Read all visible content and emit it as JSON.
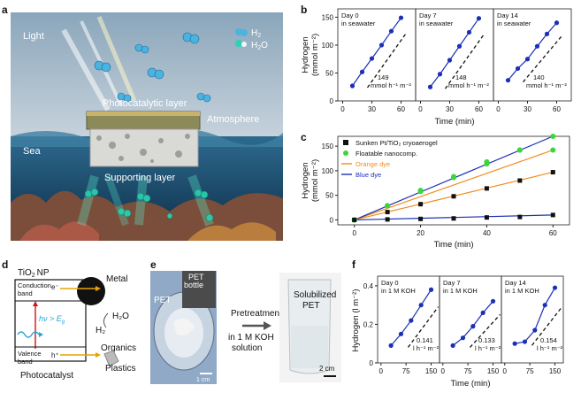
{
  "panel_labels": {
    "a": "a",
    "b": "b",
    "c": "c",
    "d": "d",
    "e": "e",
    "f": "f"
  },
  "panel_a": {
    "light": "Light",
    "legend_h2": "H",
    "legend_h2_sub": "2",
    "legend_h2o_pre": "H",
    "legend_h2o_sub": "2",
    "legend_h2o_post": "O",
    "photocatalytic_layer": "Photocatalytic layer",
    "atmosphere": "Atmosphere",
    "sea": "Sea",
    "supporting_layer": "Supporting layer",
    "colors": {
      "sky": "#6f8fa6",
      "sea": "#1d4f73",
      "bubble": "#3aa0d0",
      "water_mol": "#2bd3b0"
    }
  },
  "panel_d": {
    "tio2": "TiO",
    "tio2_sub": "2",
    "tio2_np": "NP",
    "metal": "Metal",
    "conduction_band_1": "Conduction",
    "conduction_band_2": "band",
    "electron": "e⁻",
    "hv": "hν > E",
    "hv_sub": "g",
    "valence_band_1": "Valence",
    "valence_band_2": "band",
    "hole": "h⁺",
    "h2o": "H₂O",
    "h2": "H₂",
    "organics": "Organics",
    "plastics": "Plastics",
    "photocatalyst": "Photocatalyst"
  },
  "panel_e": {
    "pet": "PET",
    "pet_bottle_1": "PET",
    "pet_bottle_2": "bottle",
    "scale_1": "1 cm",
    "pretreatment": "Pretreatment",
    "in_koh_1": "in 1 M KOH",
    "in_koh_2": "solution",
    "solubilized_1": "Solubilized",
    "solubilized_2": "PET",
    "scale_2": "2 cm"
  },
  "chart_data": [
    {
      "id": "b",
      "type": "line",
      "ylabel_1": "Hydrogen",
      "ylabel_2": "(mmol m⁻²)",
      "xlabel": "Time (min)",
      "xticks": [
        0,
        30,
        60
      ],
      "yticks": [
        0,
        50,
        100,
        150
      ],
      "xlim": [
        -5,
        75
      ],
      "ylim": [
        0,
        165
      ],
      "subplots": [
        {
          "title_1": "Day 0",
          "title_2": "in seawater",
          "x": [
            10,
            20,
            30,
            40,
            50,
            60
          ],
          "y": [
            27,
            52,
            76,
            100,
            125,
            149
          ],
          "rate": "149",
          "unit": "mmol h⁻¹ m⁻²"
        },
        {
          "title_1": "Day 7",
          "title_2": "in seawater",
          "x": [
            10,
            20,
            30,
            40,
            50,
            60
          ],
          "y": [
            25,
            48,
            73,
            98,
            123,
            148
          ],
          "rate": "148",
          "unit": "mmol h⁻¹ m⁻²"
        },
        {
          "title_1": "Day 14",
          "title_2": "in seawater",
          "x": [
            10,
            20,
            30,
            40,
            50,
            60
          ],
          "y": [
            37,
            58,
            75,
            98,
            120,
            140
          ],
          "rate": "140",
          "unit": "mmol h⁻¹ m⁻²"
        }
      ]
    },
    {
      "id": "c",
      "type": "line",
      "ylabel_1": "Hydrogen",
      "ylabel_2": "(mmol m⁻²)",
      "xlabel": "Time (min)",
      "xticks": [
        0,
        20,
        40,
        60
      ],
      "yticks": [
        0,
        50,
        100,
        150
      ],
      "xlim": [
        -5,
        65
      ],
      "ylim": [
        -10,
        170
      ],
      "legend": [
        "Sunken Pt/TiO₂ cryoaerogel",
        "Floatable nanocomp.",
        "Orange dye",
        "Blue dye"
      ],
      "series": [
        {
          "name": "Sunken Pt/TiO₂ cryoaerogel",
          "marker": "square",
          "color": "#111111",
          "x": [
            0,
            10,
            20,
            30,
            40,
            50,
            60
          ],
          "y": [
            0,
            16,
            32,
            48,
            64,
            80,
            97
          ]
        },
        {
          "name": "Floatable nanocomp.",
          "marker": "circle",
          "color": "#3bd63b",
          "x": [
            0,
            10,
            20,
            30,
            40,
            50,
            60
          ],
          "y": [
            0,
            29,
            58,
            86,
            114,
            142,
            170
          ]
        },
        {
          "name": "Floatable nanocomp.",
          "marker": "circle",
          "color": "#3bd63b",
          "x": [
            0,
            10,
            20,
            30,
            40,
            50,
            60
          ],
          "y": [
            0,
            29,
            60,
            88,
            118,
            142,
            142
          ]
        },
        {
          "name": "Sunken Pt/TiO₂ cryoaerogel",
          "marker": "square",
          "color": "#111111",
          "x": [
            0,
            10,
            20,
            30,
            40,
            50,
            60
          ],
          "y": [
            0,
            1,
            2,
            3,
            5,
            6,
            10
          ]
        }
      ],
      "lines": [
        {
          "name": "Orange dye",
          "color": "#f28c1e",
          "x": [
            0,
            60
          ],
          "y": [
            0,
            142
          ]
        },
        {
          "name": "Blue dye",
          "color": "#1b2fb8",
          "x": [
            0,
            60
          ],
          "y": [
            0,
            170
          ]
        },
        {
          "name": "Orange dye",
          "color": "#f28c1e",
          "x": [
            0,
            60
          ],
          "y": [
            0,
            97
          ]
        },
        {
          "name": "Blue dye",
          "color": "#1b2fb8",
          "x": [
            0,
            60
          ],
          "y": [
            0,
            10
          ]
        }
      ]
    },
    {
      "id": "f",
      "type": "line",
      "ylabel": "Hydrogen (l m⁻²)",
      "xlabel": "Time (min)",
      "xticks": [
        0,
        75,
        150
      ],
      "yticks": [
        0,
        0.2,
        0.4
      ],
      "xlim": [
        -10,
        175
      ],
      "ylim": [
        0,
        0.45
      ],
      "subplots": [
        {
          "title_1": "Day 0",
          "title_2": "in 1 M KOH",
          "x": [
            30,
            60,
            90,
            120,
            150
          ],
          "y": [
            0.09,
            0.15,
            0.22,
            0.3,
            0.38
          ],
          "rate": "0.141",
          "unit": "l h⁻¹ m⁻²"
        },
        {
          "title_1": "Day 7",
          "title_2": "in 1 M KOH",
          "x": [
            30,
            60,
            90,
            120,
            150
          ],
          "y": [
            0.09,
            0.13,
            0.19,
            0.26,
            0.32
          ],
          "rate": "0.133",
          "unit": "l h⁻¹ m⁻²"
        },
        {
          "title_1": "Day 14",
          "title_2": "in 1 M KOH",
          "x": [
            30,
            60,
            90,
            120,
            150
          ],
          "y": [
            0.1,
            0.11,
            0.17,
            0.3,
            0.39
          ],
          "rate": "0.154",
          "unit": "l h⁻¹ m⁻²"
        }
      ]
    }
  ]
}
